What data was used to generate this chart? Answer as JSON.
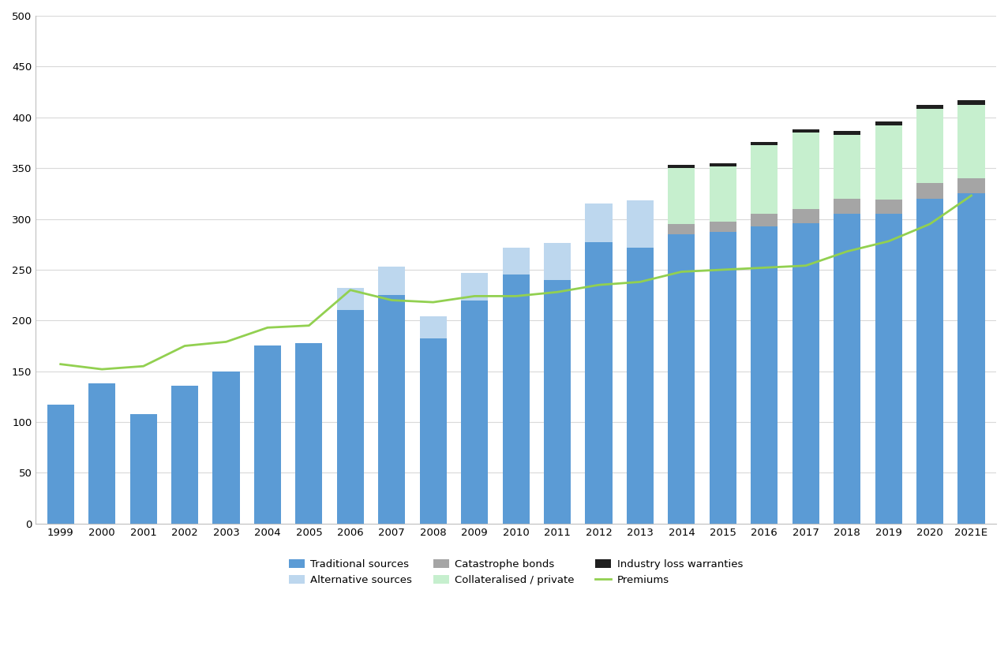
{
  "years": [
    "1999",
    "2000",
    "2001",
    "2002",
    "2003",
    "2004",
    "2005",
    "2006",
    "2007",
    "2008",
    "2009",
    "2010",
    "2011",
    "2012",
    "2013",
    "2014",
    "2015",
    "2016",
    "2017",
    "2018",
    "2019",
    "2020",
    "2021E"
  ],
  "traditional": [
    117,
    138,
    108,
    136,
    150,
    175,
    178,
    210,
    225,
    182,
    220,
    245,
    240,
    277,
    272,
    285,
    287,
    293,
    296,
    305,
    305,
    320,
    325
  ],
  "alt_sources": [
    0,
    0,
    0,
    0,
    0,
    0,
    0,
    22,
    28,
    22,
    27,
    27,
    36,
    38,
    46,
    0,
    0,
    0,
    0,
    0,
    0,
    0,
    0
  ],
  "cat_bonds": [
    0,
    0,
    0,
    0,
    0,
    0,
    0,
    0,
    0,
    0,
    0,
    0,
    0,
    0,
    0,
    10,
    10,
    12,
    14,
    15,
    14,
    15,
    15
  ],
  "collateralised": [
    0,
    0,
    0,
    0,
    0,
    0,
    0,
    0,
    0,
    0,
    0,
    0,
    0,
    0,
    0,
    55,
    55,
    68,
    75,
    63,
    73,
    73,
    72
  ],
  "industry_loss": [
    0,
    0,
    0,
    0,
    0,
    0,
    0,
    0,
    0,
    0,
    0,
    0,
    0,
    0,
    0,
    3,
    3,
    3,
    3,
    4,
    4,
    4,
    5
  ],
  "premiums": [
    157,
    152,
    155,
    175,
    179,
    193,
    195,
    230,
    220,
    218,
    224,
    224,
    228,
    235,
    238,
    248,
    250,
    252,
    254,
    268,
    278,
    295,
    323
  ],
  "bar_colors": {
    "traditional": "#5B9BD5",
    "alt_sources": "#BDD7EE",
    "cat_bonds": "#A5A5A5",
    "collateralised": "#C6EFCE",
    "industry_loss": "#1F1F1F"
  },
  "line_color": "#92D050",
  "ylim": [
    0,
    500
  ],
  "yticks": [
    0,
    50,
    100,
    150,
    200,
    250,
    300,
    350,
    400,
    450,
    500
  ],
  "bg_color": "#FFFFFF"
}
